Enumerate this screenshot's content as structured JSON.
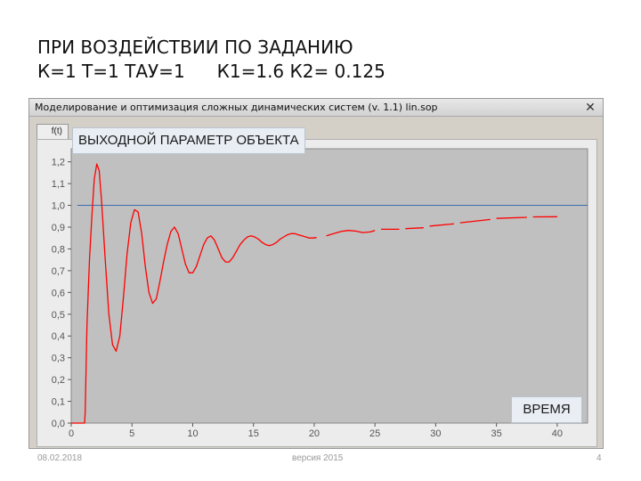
{
  "slide": {
    "title_line1": "ПРИ ВОЗДЕЙСТВИИ ПО ЗАДАНИЮ",
    "title_line2a": "К=1 Т=1 ТАУ=1",
    "title_line2b": "К1=1.6  К2= 0.125"
  },
  "window": {
    "title": "Моделирование и оптимизация сложных динамических систем (v. 1.1)   lin.sop",
    "close_glyph": "✕",
    "tab_label": "f(t)"
  },
  "footer": {
    "date": "08.02.2018",
    "version": "версия 2015",
    "page": "4"
  },
  "colors": {
    "curve": "#ff0000",
    "reference_line": "#3a6fb0",
    "plot_bg": "#c0c0c0"
  },
  "chart_data": {
    "type": "line",
    "title": "ВЫХОДНОЙ ПАРАМЕТР ОБЪЕКТА",
    "xlabel": "ВРЕМЯ",
    "ylabel": "",
    "xlim": [
      0,
      42.5
    ],
    "ylim": [
      0,
      1.26
    ],
    "x_ticks": [
      "0",
      "5",
      "10",
      "15",
      "20",
      "25",
      "30",
      "35",
      "40"
    ],
    "y_ticks": [
      "0,0",
      "0,1",
      "0,2",
      "0,3",
      "0,4",
      "0,5",
      "0,6",
      "0,7",
      "0,8",
      "0,9",
      "1,0",
      "1,1",
      "1,2"
    ],
    "grid": false,
    "reference_line": {
      "y": 1.0
    },
    "series": [
      {
        "x": [
          0,
          1.1,
          1.15,
          1.3,
          1.5,
          1.7,
          1.9,
          2.1,
          2.3,
          2.5,
          2.8,
          3.1,
          3.4,
          3.7,
          4.0,
          4.3,
          4.6,
          4.9,
          5.2,
          5.5,
          5.8,
          6.1,
          6.4,
          6.7,
          7.0,
          7.3,
          7.6,
          7.9,
          8.2,
          8.5,
          8.8,
          9.1,
          9.4,
          9.7,
          10.0,
          10.3,
          10.6,
          10.9,
          11.2,
          11.5,
          11.8,
          12.1,
          12.4,
          12.7,
          13.0,
          13.3,
          13.6,
          13.9,
          14.2,
          14.5,
          14.8,
          15.1,
          15.4,
          15.7,
          16.0,
          16.3,
          16.6,
          16.9,
          17.2,
          17.5,
          17.8,
          18.1,
          18.4,
          18.7,
          19.0,
          19.3,
          19.6,
          19.9,
          20.2
        ],
        "y": [
          0,
          0,
          0.05,
          0.45,
          0.75,
          0.95,
          1.12,
          1.19,
          1.16,
          1.02,
          0.75,
          0.5,
          0.36,
          0.33,
          0.4,
          0.58,
          0.78,
          0.92,
          0.98,
          0.97,
          0.87,
          0.72,
          0.6,
          0.55,
          0.57,
          0.65,
          0.74,
          0.82,
          0.88,
          0.9,
          0.87,
          0.8,
          0.73,
          0.69,
          0.69,
          0.72,
          0.77,
          0.82,
          0.85,
          0.86,
          0.84,
          0.8,
          0.76,
          0.74,
          0.74,
          0.76,
          0.79,
          0.82,
          0.84,
          0.855,
          0.86,
          0.855,
          0.845,
          0.83,
          0.82,
          0.815,
          0.82,
          0.83,
          0.845,
          0.855,
          0.865,
          0.87,
          0.87,
          0.865,
          0.86,
          0.855,
          0.85,
          0.85,
          0.852
        ]
      },
      {
        "x": [
          21.0,
          21.6,
          22.2,
          22.8,
          23.4,
          24.0,
          24.6,
          25.0
        ],
        "y": [
          0.86,
          0.87,
          0.88,
          0.885,
          0.882,
          0.875,
          0.878,
          0.885
        ]
      },
      {
        "x": [
          25.5,
          27.0
        ],
        "y": [
          0.89,
          0.89
        ]
      },
      {
        "x": [
          27.5,
          29.0
        ],
        "y": [
          0.893,
          0.897
        ]
      },
      {
        "x": [
          29.5,
          31.5
        ],
        "y": [
          0.905,
          0.915
        ]
      },
      {
        "x": [
          32.0,
          34.5
        ],
        "y": [
          0.92,
          0.935
        ]
      },
      {
        "x": [
          35.0,
          37.5
        ],
        "y": [
          0.94,
          0.945
        ]
      },
      {
        "x": [
          38.0,
          40.0
        ],
        "y": [
          0.947,
          0.948
        ]
      }
    ]
  }
}
